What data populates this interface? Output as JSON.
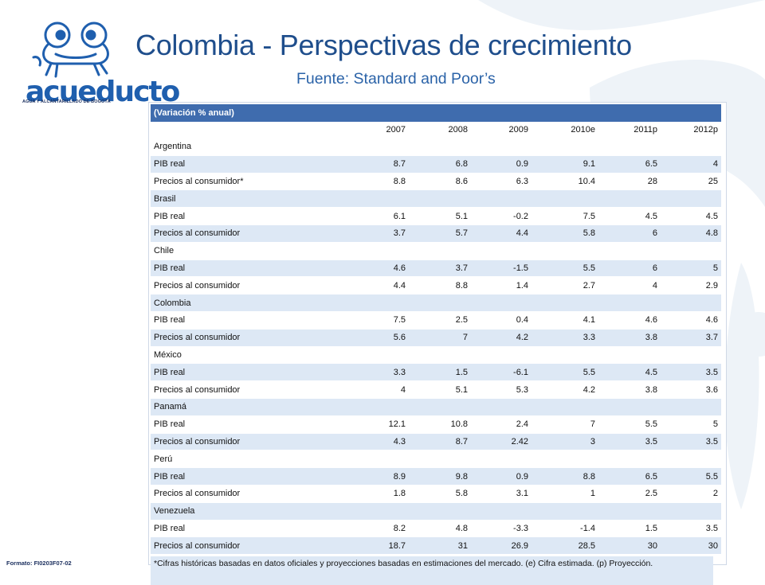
{
  "title": "Colombia - Perspectivas de crecimiento",
  "subtitle": "Fuente: Standard and Poor’s",
  "logo": {
    "word": "acueducto",
    "subtitle": "AGUA Y ALCANTARILLADO DE BOGOTÁ"
  },
  "format_code": "Formato: FI0203F07-02",
  "colors": {
    "title": "#1f4e8c",
    "table_header": "#3f6cae",
    "band": "#dde8f5",
    "watermark": "#eef3f8"
  },
  "table": {
    "header": "(Variación % anual)",
    "years": [
      "2007",
      "2008",
      "2009",
      "2010e",
      "2011p",
      "2012p"
    ],
    "rows": [
      {
        "type": "country",
        "label": "Argentina"
      },
      {
        "type": "data",
        "label": "PIB real",
        "values": [
          "8.7",
          "6.8",
          "0.9",
          "9.1",
          "6.5",
          "4"
        ]
      },
      {
        "type": "data",
        "label": "Precios al consumidor*",
        "values": [
          "8.8",
          "8.6",
          "6.3",
          "10.4",
          "28",
          "25"
        ]
      },
      {
        "type": "country",
        "label": "Brasil"
      },
      {
        "type": "data",
        "label": "PIB real",
        "values": [
          "6.1",
          "5.1",
          "-0.2",
          "7.5",
          "4.5",
          "4.5"
        ]
      },
      {
        "type": "data",
        "label": "Precios al consumidor",
        "values": [
          "3.7",
          "5.7",
          "4.4",
          "5.8",
          "6",
          "4.8"
        ]
      },
      {
        "type": "country",
        "label": "Chile"
      },
      {
        "type": "data",
        "label": "PIB real",
        "values": [
          "4.6",
          "3.7",
          "-1.5",
          "5.5",
          "6",
          "5"
        ]
      },
      {
        "type": "data",
        "label": "Precios al consumidor",
        "values": [
          "4.4",
          "8.8",
          "1.4",
          "2.7",
          "4",
          "2.9"
        ]
      },
      {
        "type": "country",
        "label": "Colombia"
      },
      {
        "type": "data",
        "label": "PIB real",
        "values": [
          "7.5",
          "2.5",
          "0.4",
          "4.1",
          "4.6",
          "4.6"
        ]
      },
      {
        "type": "data",
        "label": "Precios al consumidor",
        "values": [
          "5.6",
          "7",
          "4.2",
          "3.3",
          "3.8",
          "3.7"
        ]
      },
      {
        "type": "country",
        "label": "México"
      },
      {
        "type": "data",
        "label": "PIB real",
        "values": [
          "3.3",
          "1.5",
          "-6.1",
          "5.5",
          "4.5",
          "3.5"
        ]
      },
      {
        "type": "data",
        "label": "Precios al consumidor",
        "values": [
          "4",
          "5.1",
          "5.3",
          "4.2",
          "3.8",
          "3.6"
        ]
      },
      {
        "type": "country",
        "label": "Panamá"
      },
      {
        "type": "data",
        "label": "PIB real",
        "values": [
          "12.1",
          "10.8",
          "2.4",
          "7",
          "5.5",
          "5"
        ]
      },
      {
        "type": "data",
        "label": "Precios al consumidor",
        "values": [
          "4.3",
          "8.7",
          "2.42",
          "3",
          "3.5",
          "3.5"
        ]
      },
      {
        "type": "country",
        "label": "Perú"
      },
      {
        "type": "data",
        "label": "PIB real",
        "values": [
          "8.9",
          "9.8",
          "0.9",
          "8.8",
          "6.5",
          "5.5"
        ]
      },
      {
        "type": "data",
        "label": "Precios al consumidor",
        "values": [
          "1.8",
          "5.8",
          "3.1",
          "1",
          "2.5",
          "2"
        ]
      },
      {
        "type": "country",
        "label": "Venezuela"
      },
      {
        "type": "data",
        "label": "PIB real",
        "values": [
          "8.2",
          "4.8",
          "-3.3",
          "-1.4",
          "1.5",
          "3.5"
        ]
      },
      {
        "type": "data",
        "label": "Precios al consumidor",
        "values": [
          "18.7",
          "31",
          "26.9",
          "28.5",
          "30",
          "30"
        ]
      }
    ],
    "footnote": "*Cifras históricas basadas en datos oficiales y proyecciones basadas en estimaciones del mercado. (e) Cifra estimada. (p) Proyección."
  }
}
